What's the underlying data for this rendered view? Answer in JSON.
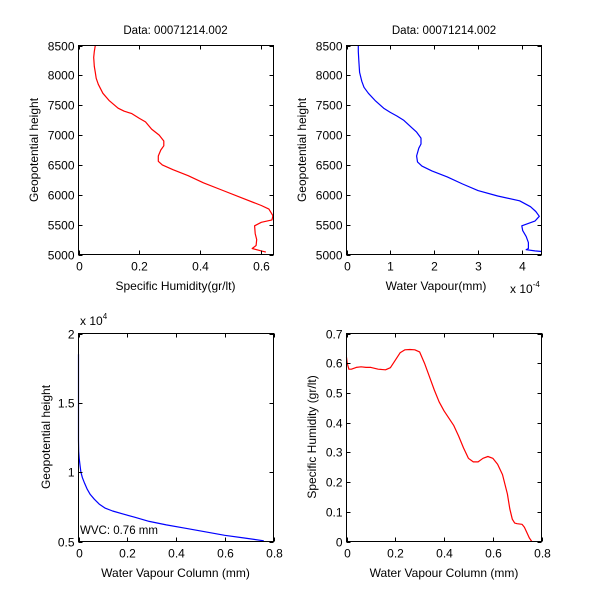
{
  "figure": {
    "background": "#ffffff"
  },
  "chart_data": [
    {
      "id": "top-left",
      "type": "line",
      "title": "Data: 00071214.002",
      "xlabel": "Specific Humidity(gr/lt)",
      "ylabel": "Geopotential height",
      "xlim": [
        0,
        0.64
      ],
      "ylim": [
        5000,
        8500
      ],
      "xticks": [
        0,
        0.2,
        0.4,
        0.6
      ],
      "xtick_labels": [
        "0",
        "0.2",
        "0.4",
        "0.6"
      ],
      "yticks": [
        5000,
        5500,
        6000,
        6500,
        7000,
        7500,
        8000,
        8500
      ],
      "ytick_labels": [
        "5000",
        "5500",
        "6000",
        "6500",
        "7000",
        "7500",
        "8000",
        "8500"
      ],
      "x_exponent_label": "",
      "y_exponent_label": "",
      "grid": false,
      "series": [
        {
          "name": "specific-humidity-profile",
          "color": "#ff0000",
          "x": [
            0.055,
            0.052,
            0.05,
            0.052,
            0.055,
            0.058,
            0.065,
            0.08,
            0.1,
            0.13,
            0.15,
            0.175,
            0.2,
            0.22,
            0.24,
            0.265,
            0.28,
            0.28,
            0.27,
            0.262,
            0.262,
            0.275,
            0.31,
            0.36,
            0.41,
            0.47,
            0.53,
            0.6,
            0.625,
            0.638,
            0.635,
            0.6,
            0.578,
            0.58,
            0.585,
            0.583,
            0.57,
            0.6,
            0.615
          ],
          "y": [
            8500,
            8400,
            8300,
            8150,
            8050,
            7950,
            7850,
            7700,
            7580,
            7450,
            7400,
            7360,
            7280,
            7220,
            7100,
            7000,
            6900,
            6820,
            6750,
            6650,
            6560,
            6500,
            6420,
            6320,
            6200,
            6080,
            5960,
            5820,
            5760,
            5650,
            5580,
            5540,
            5480,
            5350,
            5250,
            5150,
            5100,
            5060,
            5040
          ]
        }
      ]
    },
    {
      "id": "top-right",
      "type": "line",
      "title": "Data: 00071214.002",
      "xlabel": "Water Vapour(mm)",
      "ylabel": "Geopotential height",
      "xlim": [
        0,
        4.45
      ],
      "ylim": [
        5000,
        8500
      ],
      "xticks": [
        0,
        1,
        2,
        3,
        4
      ],
      "xtick_labels": [
        "0",
        "1",
        "2",
        "3",
        "4"
      ],
      "yticks": [
        5000,
        5500,
        6000,
        6500,
        7000,
        7500,
        8000,
        8500
      ],
      "ytick_labels": [
        "5000",
        "5500",
        "6000",
        "6500",
        "7000",
        "7500",
        "8000",
        "8500"
      ],
      "x_exponent_label": "x 10",
      "x_exponent_power": "-4",
      "y_exponent_label": "",
      "grid": false,
      "series": [
        {
          "name": "water-vapour-profile",
          "color": "#0000ff",
          "x": [
            0.27,
            0.27,
            0.28,
            0.3,
            0.35,
            0.4,
            0.5,
            0.65,
            0.85,
            1.0,
            1.15,
            1.3,
            1.45,
            1.6,
            1.7,
            1.7,
            1.65,
            1.6,
            1.62,
            1.72,
            1.95,
            2.3,
            2.65,
            3.0,
            3.45,
            3.95,
            4.2,
            4.32,
            4.4,
            4.3,
            4.0,
            4.02,
            4.1,
            4.15,
            4.15,
            4.1,
            4.3,
            4.45
          ],
          "y": [
            8500,
            8400,
            8250,
            8050,
            7900,
            7800,
            7700,
            7580,
            7450,
            7380,
            7320,
            7250,
            7150,
            7050,
            6950,
            6850,
            6780,
            6650,
            6550,
            6480,
            6400,
            6300,
            6180,
            6070,
            5980,
            5900,
            5800,
            5720,
            5640,
            5560,
            5480,
            5400,
            5300,
            5200,
            5100,
            5080,
            5060,
            5050
          ]
        }
      ]
    },
    {
      "id": "bottom-left",
      "type": "line",
      "title": "",
      "xlabel": "Water Vapour Column (mm)",
      "ylabel": "Geopotential height",
      "xlim": [
        0,
        0.8
      ],
      "ylim": [
        5000,
        20000
      ],
      "xticks": [
        0,
        0.2,
        0.4,
        0.6,
        0.8
      ],
      "xtick_labels": [
        "0",
        "0.2",
        "0.4",
        "0.6",
        "0.8"
      ],
      "yticks": [
        5000,
        10000,
        15000,
        20000
      ],
      "ytick_labels": [
        "0.5",
        "1",
        "1.5",
        "2"
      ],
      "x_exponent_label": "",
      "y_exponent_label": "x 10",
      "y_exponent_power": "4",
      "grid": false,
      "annotation": {
        "text": "WVC: 0.76 mm",
        "color": "#ff0000",
        "x": 0.003,
        "y": 5800
      },
      "series": [
        {
          "name": "cumulative-water-vapour-column",
          "color": "#0000ff",
          "x": [
            0.0,
            0.0,
            0.0,
            0.001,
            0.003,
            0.006,
            0.01,
            0.016,
            0.025,
            0.035,
            0.048,
            0.065,
            0.085,
            0.11,
            0.14,
            0.18,
            0.23,
            0.29,
            0.36,
            0.44,
            0.52,
            0.6,
            0.68,
            0.76
          ],
          "y": [
            18500,
            14500,
            12300,
            11500,
            11000,
            10500,
            10000,
            9600,
            9200,
            8800,
            8400,
            8050,
            7700,
            7400,
            7200,
            7000,
            6750,
            6450,
            6200,
            5950,
            5700,
            5450,
            5250,
            5050
          ]
        }
      ]
    },
    {
      "id": "bottom-right",
      "type": "line",
      "title": "",
      "xlabel": "Water Vapour Column (mm)",
      "ylabel": "Specific Humidity (gr/lt)",
      "xlim": [
        0,
        0.8
      ],
      "ylim": [
        0,
        0.7
      ],
      "xticks": [
        0,
        0.2,
        0.4,
        0.6,
        0.8
      ],
      "xtick_labels": [
        "0",
        "0.2",
        "0.4",
        "0.6",
        "0.8"
      ],
      "yticks": [
        0,
        0.1,
        0.2,
        0.3,
        0.4,
        0.5,
        0.6,
        0.7
      ],
      "ytick_labels": [
        "0",
        "0.1",
        "0.2",
        "0.3",
        "0.4",
        "0.5",
        "0.6",
        "0.7"
      ],
      "x_exponent_label": "",
      "y_exponent_label": "",
      "grid": false,
      "series": [
        {
          "name": "humidity-vs-column",
          "color": "#ff0000",
          "x": [
            0.0,
            0.003,
            0.01,
            0.02,
            0.04,
            0.06,
            0.08,
            0.1,
            0.13,
            0.16,
            0.18,
            0.2,
            0.22,
            0.24,
            0.26,
            0.28,
            0.3,
            0.32,
            0.34,
            0.36,
            0.38,
            0.4,
            0.42,
            0.44,
            0.46,
            0.48,
            0.5,
            0.52,
            0.54,
            0.56,
            0.58,
            0.6,
            0.62,
            0.64,
            0.66,
            0.67,
            0.68,
            0.69,
            0.7,
            0.72,
            0.73,
            0.74,
            0.75,
            0.76
          ],
          "y": [
            0.62,
            0.6,
            0.58,
            0.58,
            0.586,
            0.588,
            0.586,
            0.586,
            0.58,
            0.578,
            0.585,
            0.61,
            0.635,
            0.645,
            0.646,
            0.645,
            0.638,
            0.6,
            0.555,
            0.51,
            0.47,
            0.44,
            0.415,
            0.39,
            0.355,
            0.315,
            0.28,
            0.268,
            0.268,
            0.28,
            0.286,
            0.28,
            0.26,
            0.225,
            0.16,
            0.11,
            0.075,
            0.062,
            0.06,
            0.058,
            0.048,
            0.03,
            0.012,
            0.0
          ]
        }
      ]
    }
  ]
}
